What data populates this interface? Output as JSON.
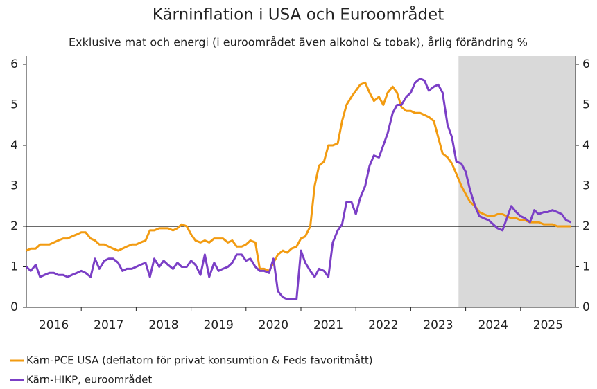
{
  "chart_data": {
    "type": "line",
    "title": "Kärninflation i USA och Euroområdet",
    "subtitle": "Exklusive mat och energi (i euroområdet även alkohol & tobak), årlig förändring %",
    "x": [
      2016,
      2016.08,
      2016.17,
      2016.25,
      2016.33,
      2016.42,
      2016.5,
      2016.58,
      2016.67,
      2016.75,
      2016.83,
      2016.92,
      2017,
      2017.08,
      2017.17,
      2017.25,
      2017.33,
      2017.42,
      2017.5,
      2017.58,
      2017.67,
      2017.75,
      2017.83,
      2017.92,
      2018,
      2018.08,
      2018.17,
      2018.25,
      2018.33,
      2018.42,
      2018.5,
      2018.58,
      2018.67,
      2018.75,
      2018.83,
      2018.92,
      2019,
      2019.08,
      2019.17,
      2019.25,
      2019.33,
      2019.42,
      2019.5,
      2019.58,
      2019.67,
      2019.75,
      2019.83,
      2019.92,
      2020,
      2020.08,
      2020.17,
      2020.25,
      2020.33,
      2020.42,
      2020.5,
      2020.58,
      2020.67,
      2020.75,
      2020.83,
      2020.92,
      2021,
      2021.08,
      2021.17,
      2021.25,
      2021.33,
      2021.42,
      2021.5,
      2021.58,
      2021.67,
      2021.75,
      2021.83,
      2021.92,
      2022,
      2022.08,
      2022.17,
      2022.25,
      2022.33,
      2022.42,
      2022.5,
      2022.58,
      2022.67,
      2022.75,
      2022.83,
      2022.92,
      2023,
      2023.08,
      2023.17,
      2023.25,
      2023.33,
      2023.42,
      2023.5,
      2023.58,
      2023.67,
      2023.75,
      2023.83,
      2023.92,
      2024,
      2024.08,
      2024.17,
      2024.25,
      2024.33,
      2024.42,
      2024.5,
      2024.58,
      2024.67,
      2024.75,
      2024.83,
      2024.92,
      2025,
      2025.08,
      2025.17,
      2025.25,
      2025.33,
      2025.42,
      2025.5,
      2025.58,
      2025.67,
      2025.75,
      2025.83,
      2025.92
    ],
    "series": [
      {
        "name": "Kärn-PCE USA (deflatorn för privat konsumtion & Feds favoritmått)",
        "color": "#f29b11",
        "values": [
          1.4,
          1.45,
          1.45,
          1.55,
          1.55,
          1.55,
          1.6,
          1.65,
          1.7,
          1.7,
          1.75,
          1.8,
          1.85,
          1.85,
          1.7,
          1.65,
          1.55,
          1.55,
          1.5,
          1.45,
          1.4,
          1.45,
          1.5,
          1.55,
          1.55,
          1.6,
          1.65,
          1.9,
          1.9,
          1.95,
          1.95,
          1.95,
          1.9,
          1.95,
          2.05,
          2.0,
          1.8,
          1.65,
          1.6,
          1.65,
          1.6,
          1.7,
          1.7,
          1.7,
          1.6,
          1.65,
          1.5,
          1.5,
          1.55,
          1.65,
          1.6,
          0.95,
          0.95,
          0.9,
          1.1,
          1.3,
          1.4,
          1.35,
          1.45,
          1.5,
          1.7,
          1.75,
          2.0,
          3.0,
          3.5,
          3.6,
          4.0,
          4.0,
          4.05,
          4.6,
          5.0,
          5.2,
          5.35,
          5.5,
          5.55,
          5.3,
          5.1,
          5.2,
          5.0,
          5.3,
          5.45,
          5.3,
          4.95,
          4.85,
          4.85,
          4.8,
          4.8,
          4.75,
          4.7,
          4.6,
          4.2,
          3.8,
          3.7,
          3.55,
          3.3,
          3.0,
          2.8,
          2.6,
          2.5,
          2.35,
          2.3,
          2.25,
          2.25,
          2.3,
          2.3,
          2.25,
          2.2,
          2.2,
          2.15,
          2.15,
          2.1,
          2.1,
          2.1,
          2.05,
          2.05,
          2.05,
          2.0,
          2.0,
          2.0,
          2.0
        ]
      },
      {
        "name": "Kärn-HIKP, euroområdet",
        "color": "#7b3fc6",
        "values": [
          1.0,
          0.9,
          1.05,
          0.75,
          0.8,
          0.85,
          0.85,
          0.8,
          0.8,
          0.75,
          0.8,
          0.85,
          0.9,
          0.85,
          0.75,
          1.2,
          0.95,
          1.15,
          1.2,
          1.2,
          1.1,
          0.9,
          0.95,
          0.95,
          1.0,
          1.05,
          1.1,
          0.75,
          1.2,
          1.0,
          1.15,
          1.05,
          0.95,
          1.1,
          1.0,
          1.0,
          1.15,
          1.05,
          0.8,
          1.3,
          0.75,
          1.1,
          0.9,
          0.95,
          1.0,
          1.1,
          1.3,
          1.3,
          1.15,
          1.2,
          1.0,
          0.9,
          0.9,
          0.85,
          1.2,
          0.4,
          0.25,
          0.2,
          0.2,
          0.2,
          1.4,
          1.1,
          0.9,
          0.75,
          0.95,
          0.9,
          0.75,
          1.6,
          1.9,
          2.05,
          2.6,
          2.6,
          2.3,
          2.7,
          3.0,
          3.5,
          3.75,
          3.7,
          4.0,
          4.3,
          4.8,
          5.0,
          5.0,
          5.2,
          5.3,
          5.55,
          5.65,
          5.6,
          5.35,
          5.45,
          5.5,
          5.3,
          4.5,
          4.2,
          3.6,
          3.55,
          3.35,
          2.9,
          2.5,
          2.25,
          2.2,
          2.15,
          2.05,
          1.95,
          1.9,
          2.2,
          2.5,
          2.35,
          2.25,
          2.2,
          2.1,
          2.4,
          2.3,
          2.35,
          2.35,
          2.4,
          2.35,
          2.3,
          2.15,
          2.1
        ]
      }
    ],
    "xlim": [
      2016,
      2026
    ],
    "xticks": [
      2017,
      2018,
      2019,
      2020,
      2021,
      2022,
      2023,
      2024,
      2025
    ],
    "year_labels": [
      {
        "value": 2016.5,
        "label": "2016"
      },
      {
        "value": 2017.5,
        "label": "2017"
      },
      {
        "value": 2018.5,
        "label": "2018"
      },
      {
        "value": 2019.5,
        "label": "2019"
      },
      {
        "value": 2020.5,
        "label": "2020"
      },
      {
        "value": 2021.5,
        "label": "2021"
      },
      {
        "value": 2022.5,
        "label": "2022"
      },
      {
        "value": 2023.5,
        "label": "2023"
      },
      {
        "value": 2024.5,
        "label": "2024"
      },
      {
        "value": 2025.5,
        "label": "2025"
      }
    ],
    "ylim": [
      0,
      6
    ],
    "yticks": [
      0,
      1,
      2,
      3,
      4,
      5,
      6
    ],
    "y2lim": [
      0,
      6
    ],
    "y2ticks": [
      0,
      1,
      2,
      3,
      4,
      5,
      6
    ],
    "reference_line": 2,
    "shaded_xrange": [
      2023.87,
      2026
    ],
    "shade_color": "#d9d9d9"
  }
}
